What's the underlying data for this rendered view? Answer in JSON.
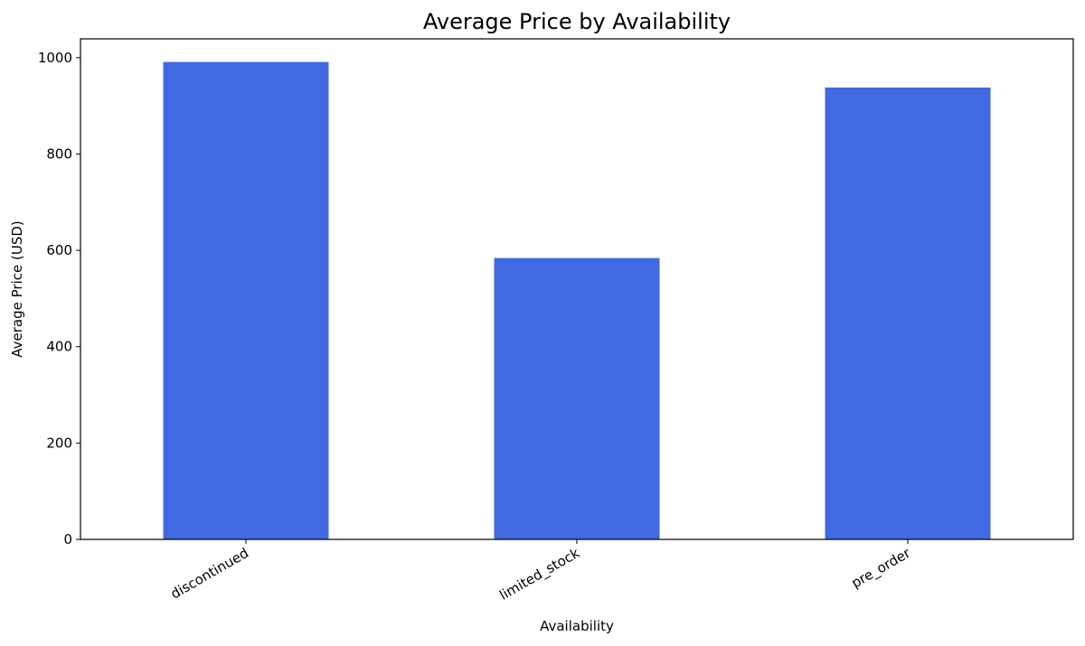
{
  "chart_data": {
    "type": "bar",
    "title": "Average Price by Availability",
    "x_label": "Availability",
    "y_label": "Average Price (USD)",
    "categories": [
      "discontinued",
      "limited_stock",
      "pre_order"
    ],
    "values": [
      991,
      584,
      938
    ],
    "color": "#4169e1",
    "ylim": [
      0,
      1039
    ],
    "yticks": [
      0,
      200,
      400,
      600,
      800,
      1000
    ],
    "grid": false
  }
}
